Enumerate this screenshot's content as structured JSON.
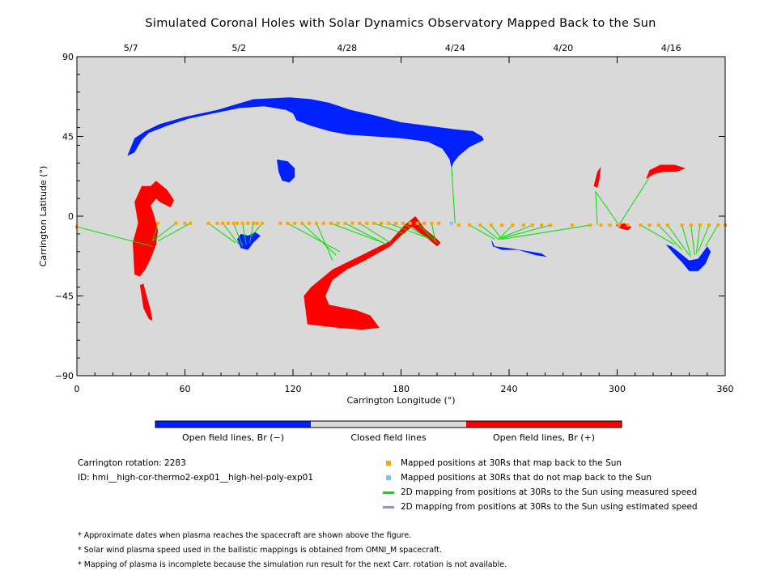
{
  "title": "Simulated Coronal Holes with Solar Dynamics Observatory Mapped Back to the Sun",
  "chart_data": {
    "type": "scatter",
    "title": "Simulated Coronal Holes with Solar Dynamics Observatory Mapped Back to the Sun",
    "xlabel": "Carrington Longitude (°)",
    "ylabel": "Carrington Latitude (°)",
    "xlim": [
      0,
      360
    ],
    "ylim": [
      -90,
      90
    ],
    "xticks": [
      "0",
      "60",
      "120",
      "180",
      "240",
      "300",
      "360"
    ],
    "yticks": [
      "90",
      "45",
      "0",
      "−45",
      "−90"
    ],
    "top_axis_dates": [
      {
        "label": "5/7",
        "lon": 30
      },
      {
        "label": "5/2",
        "lon": 90
      },
      {
        "label": "4/28",
        "lon": 150
      },
      {
        "label": "4/24",
        "lon": 210
      },
      {
        "label": "4/20",
        "lon": 270
      },
      {
        "label": "4/16",
        "lon": 330
      }
    ],
    "colors": {
      "background": "#d9d9d9",
      "open_negative": "#0020ff",
      "open_positive": "#ff0000",
      "closed": "#d9d9d9",
      "mapped": "#ffa500",
      "unmapped": "#80c0ff",
      "measured_line": "#00e000",
      "estimated_line": "#b080e0"
    },
    "coronal_holes": [
      {
        "name": "north-polar-extension",
        "polarity": "negative",
        "outline": [
          [
            28,
            34
          ],
          [
            32,
            44
          ],
          [
            38,
            48
          ],
          [
            46,
            52
          ],
          [
            60,
            56
          ],
          [
            78,
            60
          ],
          [
            98,
            66
          ],
          [
            118,
            67
          ],
          [
            130,
            66
          ],
          [
            140,
            64
          ],
          [
            152,
            60
          ],
          [
            165,
            57
          ],
          [
            180,
            53
          ],
          [
            195,
            51
          ],
          [
            210,
            49
          ],
          [
            220,
            48
          ],
          [
            225,
            45
          ],
          [
            226,
            43
          ],
          [
            218,
            39
          ],
          [
            212,
            34
          ],
          [
            209,
            30
          ],
          [
            208,
            27
          ],
          [
            207,
            32
          ],
          [
            203,
            38
          ],
          [
            195,
            42
          ],
          [
            180,
            44
          ],
          [
            165,
            45
          ],
          [
            150,
            46
          ],
          [
            140,
            48
          ],
          [
            130,
            51
          ],
          [
            122,
            54
          ],
          [
            120,
            58
          ],
          [
            116,
            60
          ],
          [
            104,
            62
          ],
          [
            90,
            61
          ],
          [
            76,
            58
          ],
          [
            62,
            55
          ],
          [
            50,
            51
          ],
          [
            40,
            47
          ],
          [
            36,
            43
          ],
          [
            32,
            36
          ]
        ]
      },
      {
        "name": "ch-110-30",
        "polarity": "negative",
        "outline": [
          [
            111,
            32
          ],
          [
            117,
            31
          ],
          [
            121,
            27
          ],
          [
            121,
            22
          ],
          [
            118,
            19
          ],
          [
            114,
            20
          ],
          [
            112,
            25
          ]
        ]
      },
      {
        "name": "ch-90-neg",
        "polarity": "negative",
        "outline": [
          [
            89,
            -13
          ],
          [
            91,
            -18
          ],
          [
            95,
            -19
          ],
          [
            98,
            -15
          ],
          [
            102,
            -11
          ],
          [
            99,
            -9
          ],
          [
            95,
            -11
          ],
          [
            91,
            -10
          ]
        ]
      },
      {
        "name": "ch-232-neg",
        "polarity": "negative",
        "outline": [
          [
            230,
            -13
          ],
          [
            232,
            -17
          ],
          [
            240,
            -18
          ],
          [
            252,
            -20
          ],
          [
            258,
            -21
          ],
          [
            261,
            -23
          ],
          [
            255,
            -22
          ],
          [
            245,
            -19
          ],
          [
            236,
            -19
          ],
          [
            231,
            -17
          ]
        ]
      },
      {
        "name": "ch-340-neg",
        "polarity": "negative",
        "outline": [
          [
            327,
            -16
          ],
          [
            333,
            -23
          ],
          [
            336,
            -26
          ],
          [
            340,
            -31
          ],
          [
            345,
            -31
          ],
          [
            349,
            -27
          ],
          [
            352,
            -20
          ],
          [
            350,
            -17
          ],
          [
            345,
            -24
          ],
          [
            340,
            -25
          ],
          [
            334,
            -20
          ],
          [
            330,
            -17
          ]
        ]
      },
      {
        "name": "ch-40-pos-upper",
        "polarity": "positive",
        "outline": [
          [
            32,
            -33
          ],
          [
            31,
            -15
          ],
          [
            34,
            -4
          ],
          [
            32,
            8
          ],
          [
            36,
            17
          ],
          [
            41,
            17
          ],
          [
            44,
            20
          ],
          [
            50,
            15
          ],
          [
            54,
            9
          ],
          [
            52,
            5
          ],
          [
            46,
            8
          ],
          [
            44,
            10
          ],
          [
            41,
            6
          ],
          [
            43,
            0
          ],
          [
            45,
            -8
          ],
          [
            44,
            -16
          ],
          [
            41,
            -24
          ],
          [
            38,
            -30
          ],
          [
            35,
            -34
          ]
        ]
      },
      {
        "name": "ch-40-pos-lower",
        "polarity": "positive",
        "outline": [
          [
            35,
            -39
          ],
          [
            37,
            -52
          ],
          [
            40,
            -58
          ],
          [
            42,
            -59
          ],
          [
            41,
            -53
          ],
          [
            39,
            -46
          ],
          [
            37,
            -38
          ]
        ]
      },
      {
        "name": "ch-150-pos",
        "polarity": "positive",
        "outline": [
          [
            128,
            -61
          ],
          [
            126,
            -45
          ],
          [
            130,
            -40
          ],
          [
            142,
            -30
          ],
          [
            158,
            -22
          ],
          [
            174,
            -14
          ],
          [
            182,
            -5
          ],
          [
            188,
            0
          ],
          [
            193,
            -7
          ],
          [
            199,
            -12
          ],
          [
            202,
            -15
          ],
          [
            200,
            -17
          ],
          [
            194,
            -12
          ],
          [
            186,
            -6
          ],
          [
            180,
            -11
          ],
          [
            174,
            -17
          ],
          [
            160,
            -25
          ],
          [
            150,
            -30
          ],
          [
            142,
            -36
          ],
          [
            138,
            -45
          ],
          [
            140,
            -50
          ],
          [
            155,
            -53
          ],
          [
            163,
            -56
          ],
          [
            168,
            -63
          ],
          [
            158,
            -64
          ],
          [
            145,
            -63
          ]
        ]
      },
      {
        "name": "ch-288-pos",
        "polarity": "positive",
        "outline": [
          [
            287,
            17
          ],
          [
            289,
            25
          ],
          [
            291,
            28
          ],
          [
            290,
            20
          ],
          [
            289,
            16
          ]
        ]
      },
      {
        "name": "ch-300-pos",
        "polarity": "positive",
        "outline": [
          [
            299,
            -5
          ],
          [
            302,
            -7
          ],
          [
            306,
            -8
          ],
          [
            308,
            -6
          ],
          [
            304,
            -4
          ]
        ]
      },
      {
        "name": "ch-322-pos",
        "polarity": "positive",
        "outline": [
          [
            316,
            21
          ],
          [
            318,
            26
          ],
          [
            324,
            29
          ],
          [
            332,
            29
          ],
          [
            338,
            27
          ],
          [
            333,
            25
          ],
          [
            326,
            25
          ],
          [
            321,
            24
          ]
        ]
      }
    ],
    "mapped_points": [
      [
        0,
        -6
      ],
      [
        45,
        -4
      ],
      [
        55,
        -4
      ],
      [
        60,
        -4
      ],
      [
        63,
        -4
      ],
      [
        73,
        -4
      ],
      [
        78,
        -4
      ],
      [
        81,
        -4
      ],
      [
        84,
        -4
      ],
      [
        87,
        -4
      ],
      [
        89,
        -4
      ],
      [
        92,
        -4
      ],
      [
        95,
        -4
      ],
      [
        98,
        -4
      ],
      [
        100,
        -4
      ],
      [
        103,
        -4
      ],
      [
        113,
        -4
      ],
      [
        117,
        -4
      ],
      [
        121,
        -4
      ],
      [
        125,
        -4
      ],
      [
        129,
        -4
      ],
      [
        133,
        -4
      ],
      [
        137,
        -4
      ],
      [
        141,
        -4
      ],
      [
        145,
        -4
      ],
      [
        149,
        -4
      ],
      [
        153,
        -4
      ],
      [
        157,
        -4
      ],
      [
        161,
        -4
      ],
      [
        165,
        -4
      ],
      [
        169,
        -4
      ],
      [
        173,
        -4
      ],
      [
        177,
        -4
      ],
      [
        181,
        -4
      ],
      [
        185,
        -4
      ],
      [
        189,
        -4
      ],
      [
        193,
        -4
      ],
      [
        197,
        -4
      ],
      [
        201,
        -4
      ],
      [
        212,
        -5
      ],
      [
        218,
        -5
      ],
      [
        224,
        -5
      ],
      [
        230,
        -5
      ],
      [
        236,
        -5
      ],
      [
        242,
        -5
      ],
      [
        248,
        -5
      ],
      [
        253,
        -5
      ],
      [
        258,
        -5
      ],
      [
        263,
        -5
      ],
      [
        275,
        -5
      ],
      [
        285,
        -5
      ],
      [
        291,
        -5
      ],
      [
        296,
        -5
      ],
      [
        301,
        -5
      ],
      [
        306,
        -5
      ],
      [
        313,
        -5
      ],
      [
        318,
        -5
      ],
      [
        323,
        -5
      ],
      [
        328,
        -5
      ],
      [
        336,
        -5
      ],
      [
        341,
        -5
      ],
      [
        346,
        -5
      ],
      [
        351,
        -5
      ],
      [
        356,
        -5
      ],
      [
        360,
        -5
      ]
    ],
    "unmapped_points": [
      [
        208,
        -4
      ]
    ],
    "measured_lines": [
      [
        [
          0,
          -6
        ],
        [
          42,
          -17
        ]
      ],
      [
        [
          45,
          -4
        ],
        [
          42,
          -14
        ]
      ],
      [
        [
          55,
          -4
        ],
        [
          42,
          -14
        ]
      ],
      [
        [
          63,
          -4
        ],
        [
          45,
          -14
        ]
      ],
      [
        [
          73,
          -4
        ],
        [
          88,
          -15
        ]
      ],
      [
        [
          81,
          -4
        ],
        [
          90,
          -16
        ]
      ],
      [
        [
          87,
          -4
        ],
        [
          92,
          -17
        ]
      ],
      [
        [
          92,
          -4
        ],
        [
          94,
          -16
        ]
      ],
      [
        [
          98,
          -4
        ],
        [
          96,
          -15
        ]
      ],
      [
        [
          103,
          -4
        ],
        [
          97,
          -11
        ]
      ],
      [
        [
          117,
          -4
        ],
        [
          146,
          -20
        ]
      ],
      [
        [
          125,
          -4
        ],
        [
          144,
          -22
        ]
      ],
      [
        [
          133,
          -4
        ],
        [
          142,
          -25
        ]
      ],
      [
        [
          141,
          -4
        ],
        [
          170,
          -15
        ]
      ],
      [
        [
          149,
          -4
        ],
        [
          172,
          -16
        ]
      ],
      [
        [
          157,
          -4
        ],
        [
          174,
          -15
        ]
      ],
      [
        [
          165,
          -4
        ],
        [
          182,
          -10
        ]
      ],
      [
        [
          173,
          -4
        ],
        [
          194,
          -12
        ]
      ],
      [
        [
          181,
          -4
        ],
        [
          196,
          -13
        ]
      ],
      [
        [
          189,
          -4
        ],
        [
          200,
          -15
        ]
      ],
      [
        [
          197,
          -4
        ],
        [
          199,
          -14
        ]
      ],
      [
        [
          208,
          28
        ],
        [
          210,
          -4
        ]
      ],
      [
        [
          218,
          -5
        ],
        [
          232,
          -13
        ]
      ],
      [
        [
          224,
          -5
        ],
        [
          234,
          -13
        ]
      ],
      [
        [
          230,
          -5
        ],
        [
          236,
          -13
        ]
      ],
      [
        [
          242,
          -5
        ],
        [
          234,
          -13
        ]
      ],
      [
        [
          253,
          -5
        ],
        [
          236,
          -12
        ]
      ],
      [
        [
          263,
          -5
        ],
        [
          234,
          -13
        ]
      ],
      [
        [
          285,
          -5
        ],
        [
          236,
          -13
        ]
      ],
      [
        [
          288,
          14
        ],
        [
          301,
          -5
        ]
      ],
      [
        [
          288,
          14
        ],
        [
          289,
          -5
        ]
      ],
      [
        [
          318,
          22
        ],
        [
          301,
          -5
        ]
      ],
      [
        [
          313,
          -5
        ],
        [
          332,
          -16
        ]
      ],
      [
        [
          323,
          -5
        ],
        [
          336,
          -19
        ]
      ],
      [
        [
          328,
          -5
        ],
        [
          340,
          -22
        ]
      ],
      [
        [
          336,
          -5
        ],
        [
          341,
          -23
        ]
      ],
      [
        [
          341,
          -5
        ],
        [
          343,
          -22
        ]
      ],
      [
        [
          346,
          -5
        ],
        [
          344,
          -21
        ]
      ],
      [
        [
          351,
          -5
        ],
        [
          345,
          -20
        ]
      ],
      [
        [
          356,
          -5
        ],
        [
          349,
          -17
        ]
      ]
    ]
  },
  "colorbar": {
    "labels": [
      "Open field lines, Br (−)",
      "Closed field lines",
      "Open field lines, Br (+)"
    ]
  },
  "info": {
    "rotation": "Carrington rotation: 2283",
    "id": "ID: hmi__high-cor-thermo2-exp01__high-hel-poly-exp01"
  },
  "legend": [
    {
      "label": "Mapped positions at 30Rs that map back to the Sun",
      "symbol": "square",
      "color": "#ffa500"
    },
    {
      "label": "Mapped positions at 30Rs that do not map back to the Sun",
      "symbol": "square",
      "color": "#80c0ff"
    },
    {
      "label": "2D mapping from positions at 30Rs to the Sun using measured speed",
      "symbol": "line",
      "color": "#00e000"
    },
    {
      "label": "2D mapping from positions at 30Rs to the Sun using estimated speed",
      "symbol": "line",
      "color": "#b080e0"
    }
  ],
  "notes": [
    "* Approximate dates when plasma reaches the spacecraft are shown above the figure.",
    "* Solar wind plasma speed used in the ballistic mappings is obtained from OMNI_M spacecraft.",
    "* Mapping of plasma is incomplete because the simulation run result for the next Carr. rotation is not available."
  ]
}
